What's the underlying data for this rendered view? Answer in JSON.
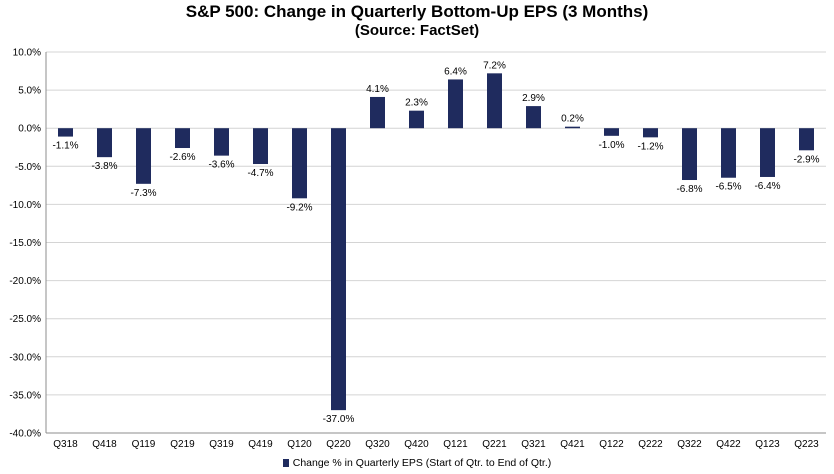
{
  "chart_data": {
    "type": "bar",
    "title": "S&P 500: Change in Quarterly Bottom-Up EPS (3 Months)",
    "subtitle": "(Source: FactSet)",
    "categories": [
      "Q318",
      "Q418",
      "Q119",
      "Q219",
      "Q319",
      "Q419",
      "Q120",
      "Q220",
      "Q320",
      "Q420",
      "Q121",
      "Q221",
      "Q321",
      "Q421",
      "Q122",
      "Q222",
      "Q322",
      "Q422",
      "Q123",
      "Q223"
    ],
    "series": [
      {
        "name": "Change % in Quarterly EPS (Start of Qtr. to End of Qtr.)",
        "values": [
          -1.1,
          -3.8,
          -7.3,
          -2.6,
          -3.6,
          -4.7,
          -9.2,
          -37.0,
          4.1,
          2.3,
          6.4,
          7.2,
          2.9,
          0.2,
          -1.0,
          -1.2,
          -6.8,
          -6.5,
          -6.4,
          -2.9
        ]
      }
    ],
    "data_labels": [
      "-1.1%",
      "-3.8%",
      "-7.3%",
      "-2.6%",
      "-3.6%",
      "-4.7%",
      "-9.2%",
      "-37.0%",
      "4.1%",
      "2.3%",
      "6.4%",
      "7.2%",
      "2.9%",
      "0.2%",
      "-1.0%",
      "-1.2%",
      "-6.8%",
      "-6.5%",
      "-6.4%",
      "-2.9%"
    ],
    "y_ticks": [
      10,
      5,
      0,
      -5,
      -10,
      -15,
      -20,
      -25,
      -30,
      -35,
      -40
    ],
    "y_tick_labels": [
      "10.0%",
      "5.0%",
      "0.0%",
      "-5.0%",
      "-10.0%",
      "-15.0%",
      "-20.0%",
      "-25.0%",
      "-30.0%",
      "-35.0%",
      "-40.0%"
    ],
    "ylim": [
      -40,
      10
    ],
    "grid": "horizontal",
    "legend": "bottom-center",
    "colors": {
      "bar": "#1f2b5e",
      "grid": "#d4d4d4",
      "axis": "#8c8c8c",
      "text": "#000000"
    }
  }
}
